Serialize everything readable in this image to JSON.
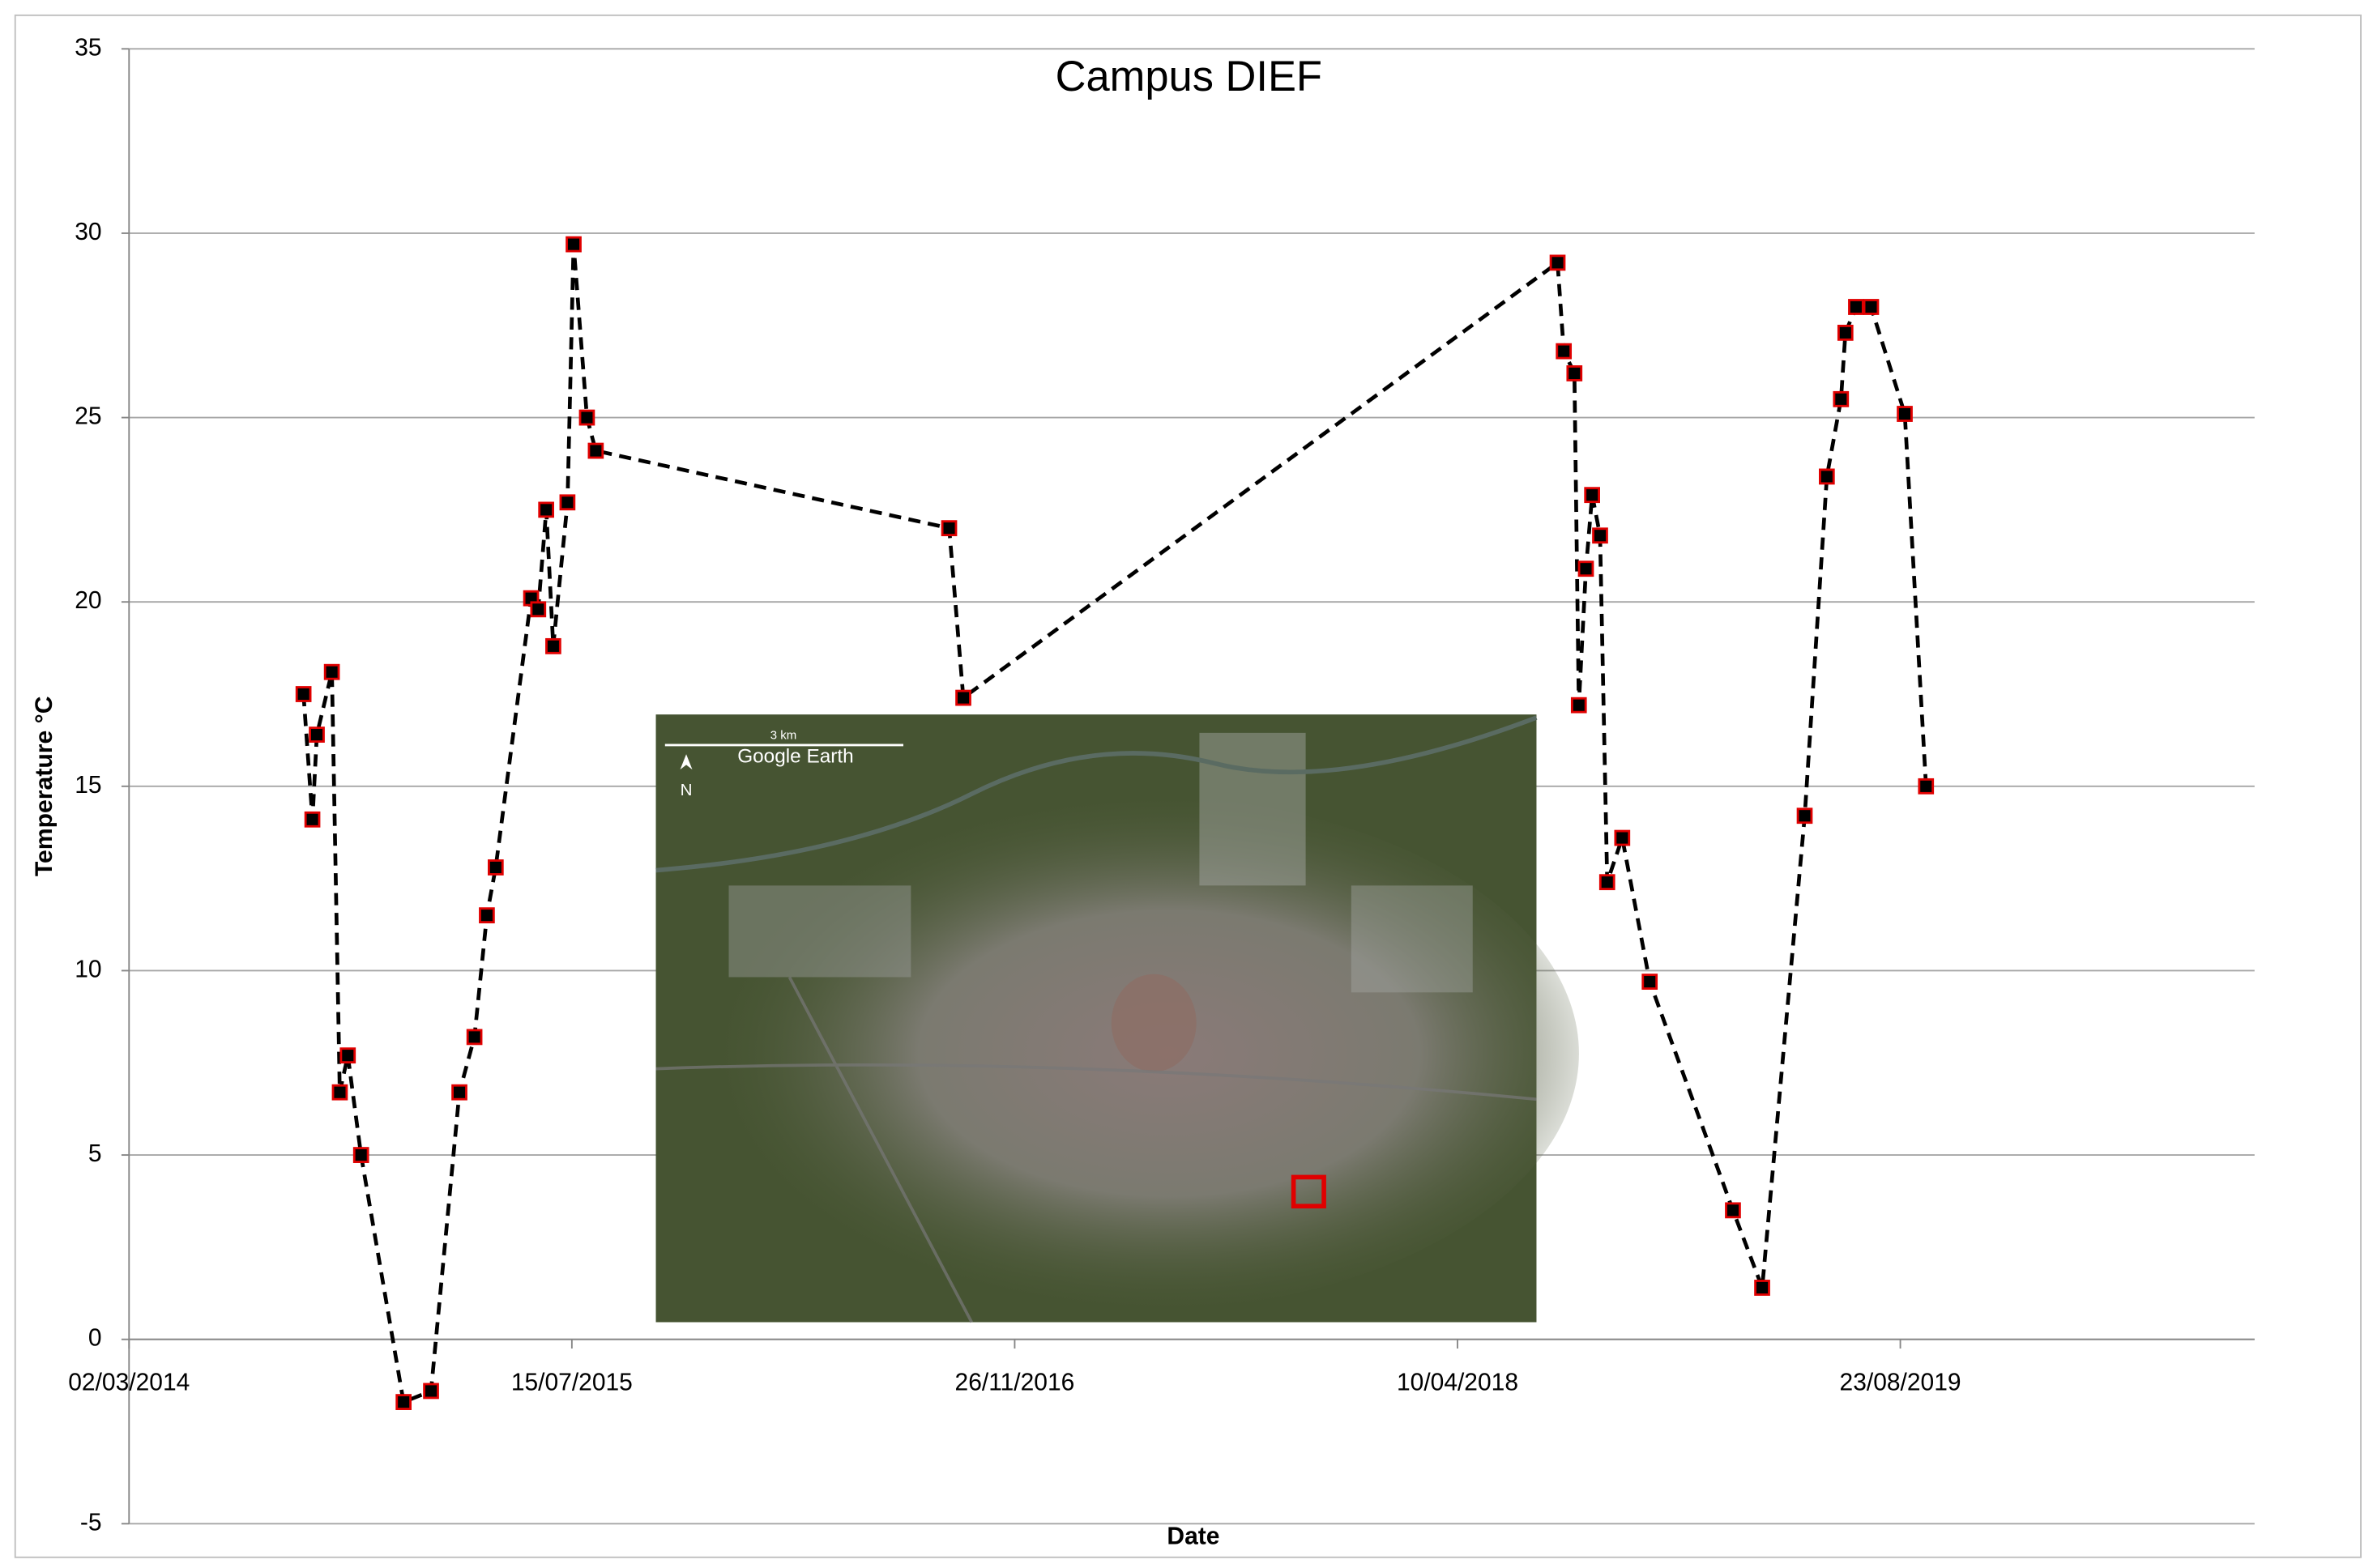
{
  "chart_data": {
    "type": "line",
    "title": "Campus DIEF",
    "x_label": "Date",
    "y_label": "Temperature °C",
    "xlim": [
      41700,
      44100
    ],
    "xticks": [
      {
        "value": 41700,
        "label": "02/03/2014"
      },
      {
        "value": 42200,
        "label": "15/07/2015"
      },
      {
        "value": 42700,
        "label": "26/11/2016"
      },
      {
        "value": 43200,
        "label": "10/04/2018"
      },
      {
        "value": 43700,
        "label": "23/08/2019"
      }
    ],
    "ylim": [
      -5,
      35
    ],
    "yticks": [
      -5,
      0,
      5,
      10,
      15,
      20,
      25,
      30,
      35
    ],
    "grid": true,
    "series": [
      {
        "line_color": "#000000",
        "marker_color": "#e00000",
        "x": [
          41897,
          41907,
          41912,
          41929,
          41938,
          41947,
          41962,
          42010,
          42041,
          42073,
          42090,
          42104,
          42114,
          42154,
          42162,
          42171,
          42179,
          42195,
          42202,
          42217,
          42227,
          42626,
          42642,
          43313,
          43320,
          43332,
          43337,
          43345,
          43352,
          43361,
          43369,
          43386,
          43417,
          43511,
          43544,
          43592,
          43617,
          43633,
          43638,
          43650,
          43667,
          43705,
          43729
        ],
        "values": [
          17.5,
          14.1,
          16.4,
          18.1,
          6.7,
          7.7,
          5.0,
          -1.7,
          -1.4,
          6.7,
          8.2,
          11.5,
          12.8,
          20.1,
          19.8,
          22.5,
          18.8,
          22.7,
          29.7,
          25.0,
          24.1,
          22.0,
          17.4,
          29.2,
          26.8,
          26.2,
          17.2,
          20.9,
          22.9,
          21.8,
          12.4,
          13.6,
          9.7,
          3.5,
          1.4,
          14.2,
          23.4,
          25.5,
          27.3,
          28.0,
          28.0,
          25.1,
          15.0
        ]
      }
    ],
    "inset": {
      "scale_label": "3 km",
      "credit": "Google Earth",
      "north": "N"
    }
  }
}
